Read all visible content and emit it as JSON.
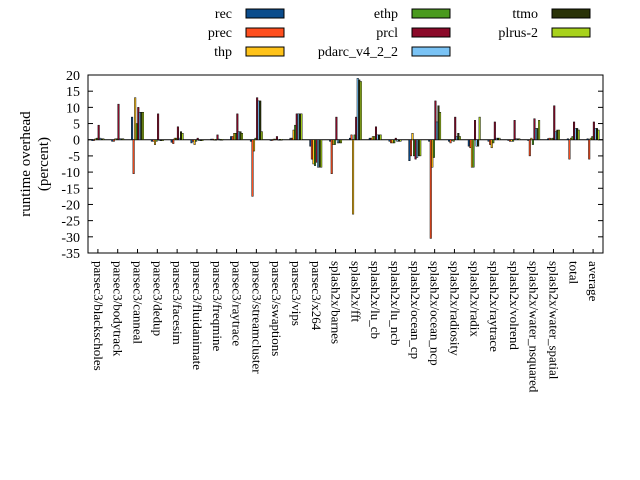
{
  "chart_data": {
    "type": "bar",
    "title": "",
    "xlabel": "",
    "ylabel": [
      "runtime overhead",
      "(percent)"
    ],
    "ylim": [
      -35,
      20
    ],
    "yticks": [
      20,
      15,
      10,
      5,
      0,
      -5,
      -10,
      -15,
      -20,
      -25,
      -30,
      -35
    ],
    "grid": false,
    "legend_position": "top",
    "categories": [
      "parsec3/blackscholes",
      "parsec3/bodytrack",
      "parsec3/canneal",
      "parsec3/dedup",
      "parsec3/facesim",
      "parsec3/fluidanimate",
      "parsec3/freqmine",
      "parsec3/raytrace",
      "parsec3/streamcluster",
      "parsec3/swaptions",
      "parsec3/vips",
      "parsec3/x264",
      "splash2x/barnes",
      "splash2x/fft",
      "splash2x/lu_cb",
      "splash2x/lu_ncb",
      "splash2x/ocean_cp",
      "splash2x/ocean_ncp",
      "splash2x/radiosity",
      "splash2x/radix",
      "splash2x/raytrace",
      "splash2x/volrend",
      "splash2x/water_nsquared",
      "splash2x/water_spatial",
      "total",
      "average"
    ],
    "series": [
      {
        "name": "rec",
        "color": "#0a4c8c",
        "values": [
          -0.3,
          -0.5,
          7,
          -0.5,
          -0.8,
          -1,
          0.2,
          1,
          -0.5,
          -0.2,
          0.5,
          -2,
          -0.5,
          0.5,
          0.5,
          -0.5,
          -6.5,
          -0.5,
          -0.5,
          -2,
          -0.5,
          -0.2,
          0,
          0.3,
          0.3,
          0.3
        ]
      },
      {
        "name": "prec",
        "color": "#ff4f1f",
        "values": [
          -0.2,
          -0.5,
          -10.5,
          -0.5,
          -1.2,
          -0.5,
          0.2,
          1,
          -17.5,
          -0.2,
          0.5,
          -6,
          -10.5,
          1.5,
          0.5,
          -1,
          -5,
          -30.5,
          -1,
          -2.5,
          -1.5,
          -0.5,
          -5,
          0.5,
          -6,
          -6
        ]
      },
      {
        "name": "thp",
        "color": "#ffc31a",
        "values": [
          0.3,
          0.3,
          13,
          -1.5,
          0.5,
          -1.5,
          0.1,
          2,
          -3.5,
          0.2,
          3,
          -7.5,
          -1.5,
          -23,
          1,
          -1,
          2,
          -8.5,
          0,
          -8.5,
          -2.5,
          -0.5,
          0.5,
          0.3,
          0.5,
          0.5
        ]
      },
      {
        "name": "ethp",
        "color": "#4a9a1e",
        "values": [
          0.5,
          0.3,
          5,
          -0.5,
          0.5,
          -0.5,
          0.1,
          2,
          0.5,
          0.2,
          4.5,
          -8,
          -1.5,
          1.5,
          1,
          -1,
          -5,
          -5.5,
          -0.5,
          -8.5,
          -1,
          -0.5,
          -1.5,
          0.5,
          1,
          1
        ]
      },
      {
        "name": "prcl",
        "color": "#8b0a2a",
        "values": [
          4.5,
          11,
          10,
          8,
          4,
          0.5,
          1.5,
          8,
          13,
          1,
          8,
          -7,
          7,
          7,
          4,
          0.5,
          -6,
          12,
          7,
          6,
          5.5,
          6,
          6.5,
          10.5,
          5.5,
          5.5
        ]
      },
      {
        "name": "pdarc_v4_2_2",
        "color": "#7ac3f5",
        "values": [
          0.5,
          0.3,
          8.5,
          -0.3,
          0.5,
          -0.3,
          0.2,
          2.5,
          12,
          0.1,
          8,
          -8.5,
          -1,
          19,
          1.5,
          -0.5,
          -5.5,
          5.5,
          1,
          -2,
          0.5,
          0.3,
          3.5,
          2.5,
          3.5,
          3.5
        ]
      },
      {
        "name": "ttmo",
        "color": "#2a3308",
        "values": [
          0.3,
          0.3,
          8.5,
          -0.3,
          2.5,
          -0.3,
          0.1,
          2.5,
          12,
          0.1,
          8,
          -8.5,
          -1,
          18.5,
          1.5,
          -0.5,
          -5,
          10.5,
          2,
          -2,
          0.5,
          0.3,
          3.5,
          3,
          3.5,
          3.5
        ]
      },
      {
        "name": "plrus-2",
        "color": "#a8d21c",
        "values": [
          0.3,
          0.3,
          8.5,
          -0.3,
          2,
          -0.3,
          0.1,
          2,
          2.5,
          0.1,
          8,
          -8.5,
          -1,
          18,
          1.5,
          -0.5,
          -5,
          8.5,
          1,
          7,
          0.5,
          0.3,
          6,
          3,
          3,
          3
        ]
      }
    ]
  }
}
